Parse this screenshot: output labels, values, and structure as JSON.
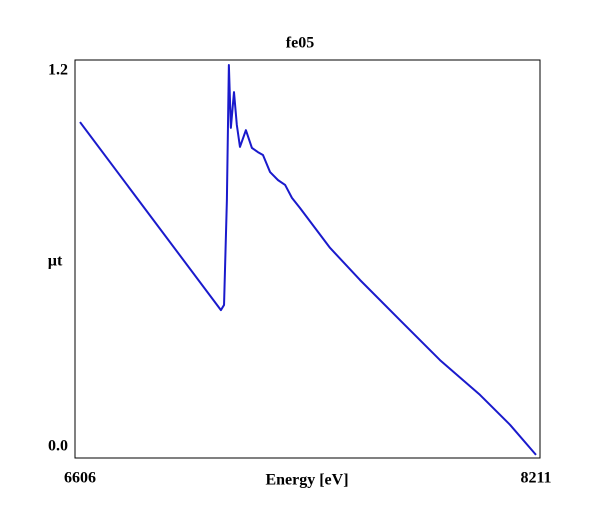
{
  "chart_data": {
    "type": "line",
    "title": "fe05",
    "xlabel": "Energy [eV]",
    "ylabel": "µt",
    "x": [
      6606,
      7102,
      7113,
      7123,
      7130,
      7137,
      7148,
      7158,
      7169,
      7190,
      7211,
      7232,
      7250,
      7275,
      7303,
      7328,
      7352,
      7380,
      7433,
      7486,
      7592,
      7732,
      7873,
      8014,
      8120,
      8211
    ],
    "series": [
      {
        "color": "#1a1acc",
        "values": [
          1.023,
          0.44,
          0.456,
          0.781,
          1.2,
          1.005,
          1.116,
          1.014,
          0.946,
          0.998,
          0.943,
          0.93,
          0.921,
          0.868,
          0.843,
          0.828,
          0.788,
          0.757,
          0.695,
          0.633,
          0.533,
          0.409,
          0.285,
          0.177,
          0.084,
          -0.009
        ]
      }
    ],
    "xlim": [
      6606,
      8211
    ],
    "ylim": [
      0,
      1.2
    ],
    "xticks": [
      6606,
      8211
    ],
    "yticks": [
      {
        "value": 0,
        "label": "0.0"
      },
      {
        "value": 1.2,
        "label": "1.2"
      }
    ]
  }
}
